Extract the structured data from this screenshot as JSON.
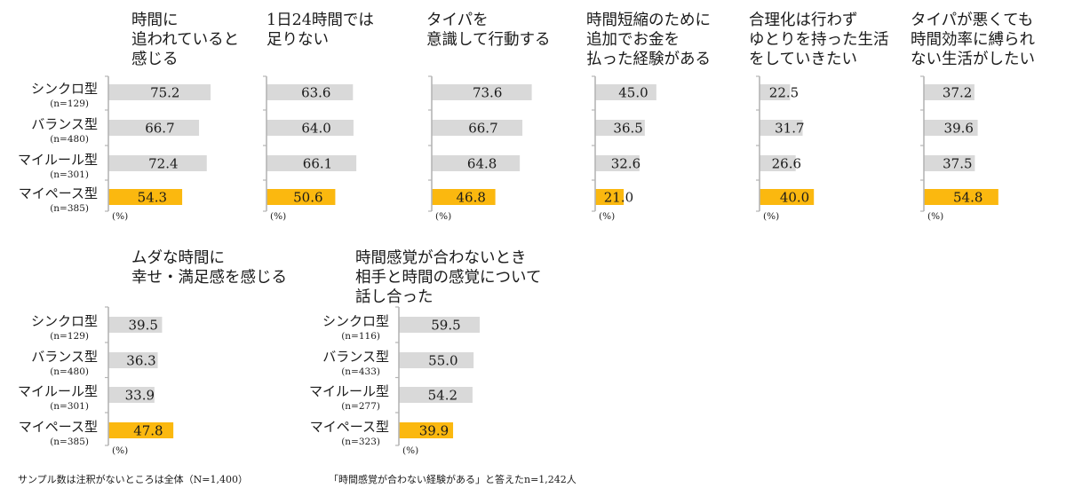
{
  "colors": {
    "bar": "#d9d9d9",
    "highlight": "#fbb80f",
    "axis": "#b5b5b5"
  },
  "chart_data": [
    {
      "type": "bar",
      "orientation": "horizontal",
      "title_lines": [
        "時間に",
        "追われていると",
        "感じる"
      ],
      "categories": [
        "シンクロ型",
        "バランス型",
        "マイルール型",
        "マイペース型"
      ],
      "n_labels": [
        "(n=129)",
        "(n=480)",
        "(n=301)",
        "(n=385)"
      ],
      "values": [
        75.2,
        66.7,
        72.4,
        54.3
      ],
      "highlight_index": 3,
      "unit": "(%)"
    },
    {
      "type": "bar",
      "orientation": "horizontal",
      "title_lines": [
        "1日24時間では",
        "足りない"
      ],
      "values": [
        63.6,
        64.0,
        66.1,
        50.6
      ],
      "highlight_index": 3,
      "unit": "(%)"
    },
    {
      "type": "bar",
      "orientation": "horizontal",
      "title_lines": [
        "タイパを",
        "意識して行動する"
      ],
      "values": [
        73.6,
        66.7,
        64.8,
        46.8
      ],
      "highlight_index": 3,
      "unit": "(%)"
    },
    {
      "type": "bar",
      "orientation": "horizontal",
      "title_lines": [
        "時間短縮のために",
        "追加でお金を",
        "払った経験がある"
      ],
      "values": [
        45.0,
        36.5,
        32.6,
        21.0
      ],
      "highlight_index": 3,
      "unit": "(%)"
    },
    {
      "type": "bar",
      "orientation": "horizontal",
      "title_lines": [
        "合理化は行わず",
        "ゆとりを持った生活",
        "をしていきたい"
      ],
      "values": [
        22.5,
        31.7,
        26.6,
        40.0
      ],
      "highlight_index": 3,
      "unit": "(%)"
    },
    {
      "type": "bar",
      "orientation": "horizontal",
      "title_lines": [
        "タイパが悪くても",
        "時間効率に縛られ",
        "ない生活がしたい"
      ],
      "values": [
        37.2,
        39.6,
        37.5,
        54.8
      ],
      "highlight_index": 3,
      "unit": "(%)"
    },
    {
      "type": "bar",
      "orientation": "horizontal",
      "title_lines": [
        "ムダな時間に",
        "幸せ・満足感を感じる"
      ],
      "categories": [
        "シンクロ型",
        "バランス型",
        "マイルール型",
        "マイペース型"
      ],
      "n_labels": [
        "(n=129)",
        "(n=480)",
        "(n=301)",
        "(n=385)"
      ],
      "values": [
        39.5,
        36.3,
        33.9,
        47.8
      ],
      "highlight_index": 3,
      "unit": "(%)"
    },
    {
      "type": "bar",
      "orientation": "horizontal",
      "title_lines": [
        "時間感覚が合わないとき",
        "相手と時間の感覚について",
        "話し合った"
      ],
      "categories": [
        "シンクロ型",
        "バランス型",
        "マイルール型",
        "マイペース型"
      ],
      "n_labels": [
        "(n=116)",
        "(n=433)",
        "(n=277)",
        "(n=323)"
      ],
      "values": [
        59.5,
        55.0,
        54.2,
        39.9
      ],
      "highlight_index": 3,
      "unit": "(%)"
    }
  ],
  "notes": {
    "left": "サンプル数は注釈がないところは全体（N=1,400）",
    "right": "「時間感覚が合わない経験がある」と答えたn=1,242人"
  }
}
